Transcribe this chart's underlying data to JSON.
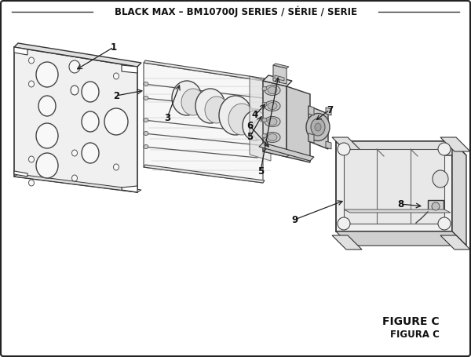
{
  "title": "BLACK MAX – BM10700J SERIES / SÉRIE / SERIE",
  "title_fontsize": 8.5,
  "title_fontweight": "bold",
  "bg_color": "#ffffff",
  "border_color": "#222222",
  "figure_label": "FIGURE C",
  "figura_label": "FIGURA C",
  "label_fontsize": 9
}
